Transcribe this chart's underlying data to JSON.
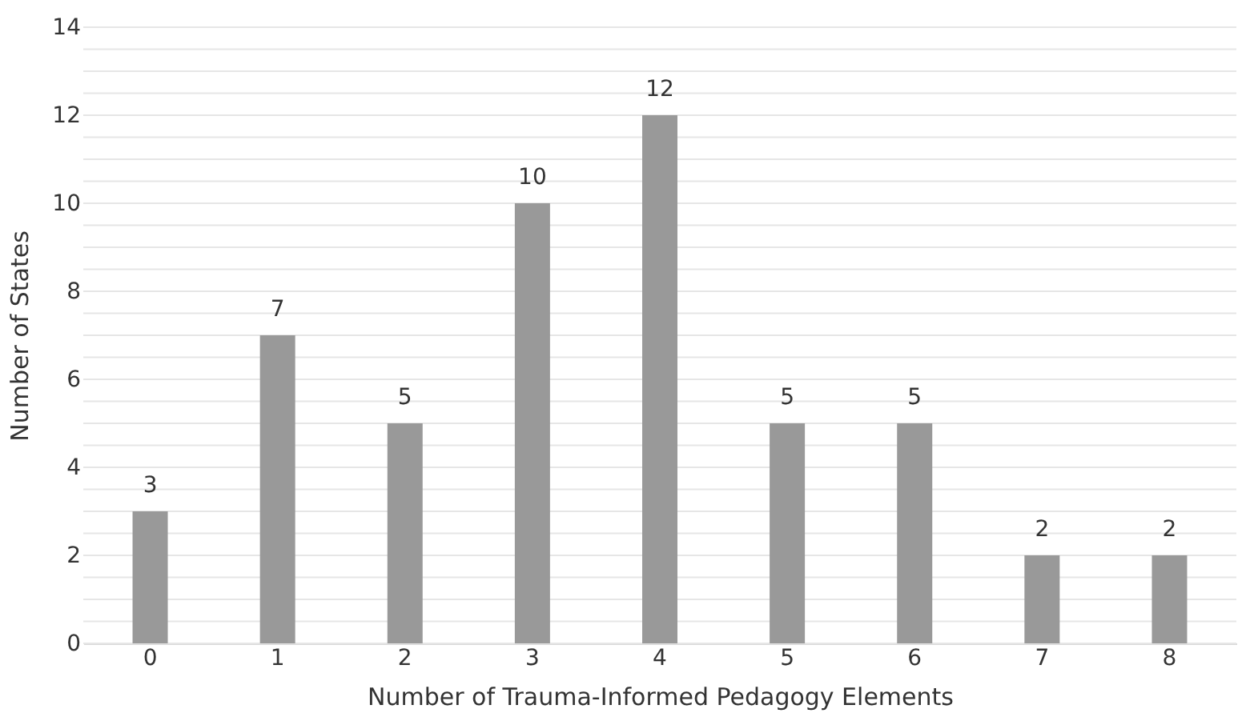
{
  "chart_data": {
    "type": "bar",
    "xlabel": "Number of Trauma-Informed Pedagogy Elements",
    "ylabel": "Number of States",
    "categories": [
      "0",
      "1",
      "2",
      "3",
      "4",
      "5",
      "6",
      "7",
      "8"
    ],
    "values": [
      3,
      7,
      5,
      10,
      12,
      5,
      5,
      2,
      2
    ],
    "color": "#999999",
    "data_labels": true,
    "ylim": [
      0,
      14
    ],
    "yticks": [
      0,
      {
        "value": 0.5,
        "label": null
      },
      {
        "value": 1,
        "label": null
      },
      {
        "value": 1.5,
        "label": null
      },
      2,
      {
        "value": 2.5,
        "label": null
      },
      {
        "value": 3,
        "label": null
      },
      {
        "value": 3.5,
        "label": null
      },
      4,
      {
        "value": 4.5,
        "label": null
      },
      {
        "value": 5,
        "label": null
      },
      {
        "value": 5.5,
        "label": null
      },
      6,
      {
        "value": 6.5,
        "label": null
      },
      {
        "value": 7,
        "label": null
      },
      {
        "value": 7.5,
        "label": null
      },
      8,
      {
        "value": 8.5,
        "label": null
      },
      {
        "value": 9,
        "label": null
      },
      {
        "value": 9.5,
        "label": null
      },
      10,
      {
        "value": 10.5,
        "label": null
      },
      {
        "value": 11,
        "label": null
      },
      {
        "value": 11.5,
        "label": null
      },
      12,
      {
        "value": 12.5,
        "label": null
      },
      {
        "value": 13,
        "label": null
      },
      {
        "value": 13.5,
        "label": null
      },
      14
    ],
    "grid": "y"
  }
}
